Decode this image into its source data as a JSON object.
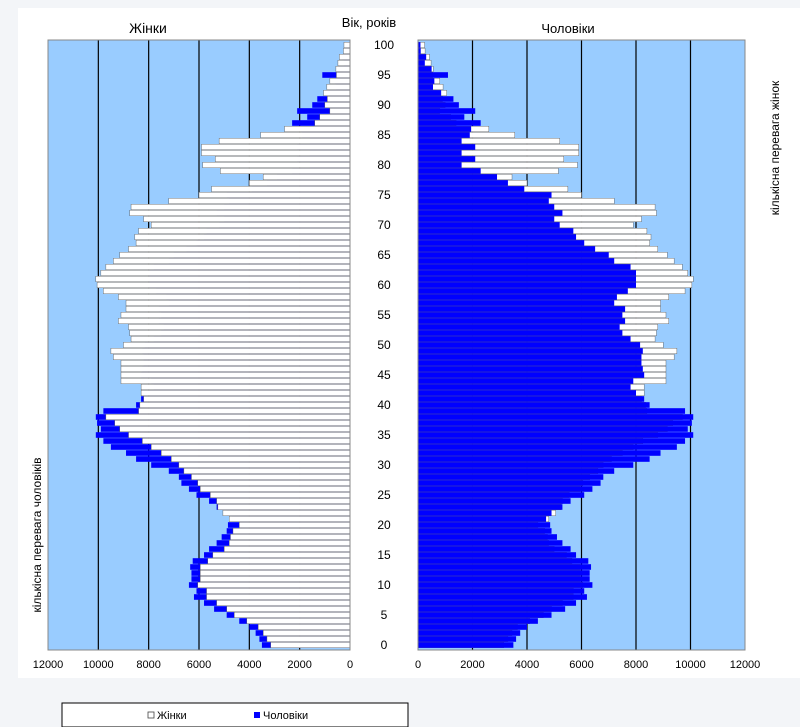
{
  "chart_data": {
    "type": "bar",
    "subtype": "population-pyramid",
    "left_panel_title": "Жінки",
    "right_panel_title": "Чоловіки",
    "center_axis_label": "Вік, років",
    "left_side_label": "кількісна перевага чоловіків",
    "right_side_label": "кількісна перевага жінок",
    "ages": [
      0,
      1,
      2,
      3,
      4,
      5,
      6,
      7,
      8,
      9,
      10,
      11,
      12,
      13,
      14,
      15,
      16,
      17,
      18,
      19,
      20,
      21,
      22,
      23,
      24,
      25,
      26,
      27,
      28,
      29,
      30,
      31,
      32,
      33,
      34,
      35,
      36,
      37,
      38,
      39,
      40,
      41,
      42,
      43,
      44,
      45,
      46,
      47,
      48,
      49,
      50,
      51,
      52,
      53,
      54,
      55,
      56,
      57,
      58,
      59,
      60,
      61,
      62,
      63,
      64,
      65,
      66,
      67,
      68,
      69,
      70,
      71,
      72,
      73,
      74,
      75,
      76,
      77,
      78,
      79,
      80,
      81,
      82,
      83,
      84,
      85,
      86,
      87,
      88,
      89,
      90,
      91,
      92,
      93,
      94,
      95,
      96,
      97,
      98,
      99,
      100
    ],
    "series": [
      {
        "name": "Жінки",
        "color": "#ffffff",
        "values": [
          3150,
          3300,
          3450,
          3650,
          4100,
          4600,
          4900,
          5300,
          5700,
          5700,
          6050,
          5950,
          5950,
          5950,
          5650,
          5450,
          5000,
          4800,
          4750,
          4650,
          4400,
          4800,
          5050,
          5250,
          5300,
          5550,
          5950,
          6050,
          6300,
          6600,
          6800,
          7100,
          7500,
          7900,
          8250,
          8800,
          9150,
          9350,
          9700,
          8400,
          8350,
          8200,
          8300,
          8300,
          9100,
          9100,
          9100,
          9100,
          9400,
          9500,
          9000,
          8700,
          8750,
          8800,
          9200,
          9100,
          8900,
          8900,
          9200,
          9800,
          10050,
          10100,
          9900,
          9700,
          9400,
          9150,
          8800,
          8500,
          8550,
          8400,
          7900,
          8200,
          8750,
          8700,
          7200,
          6000,
          5500,
          4000,
          3450,
          5150,
          5850,
          5350,
          5900,
          5900,
          5200,
          3550,
          2600,
          1400,
          1200,
          800,
          1000,
          900,
          1050,
          920,
          800,
          540,
          560,
          480,
          420,
          260,
          240
        ]
      },
      {
        "name": "Чоловіки",
        "color": "#0000ff",
        "values": [
          3500,
          3600,
          3750,
          4000,
          4400,
          4900,
          5400,
          5800,
          6200,
          6100,
          6400,
          6300,
          6300,
          6350,
          6250,
          5800,
          5600,
          5300,
          5100,
          4900,
          4850,
          4700,
          4900,
          5300,
          5600,
          6100,
          6400,
          6700,
          6800,
          7200,
          7900,
          8500,
          8900,
          9500,
          9800,
          10100,
          9900,
          10050,
          10100,
          9800,
          8500,
          8300,
          8000,
          7800,
          7900,
          8300,
          8250,
          8200,
          8200,
          8250,
          8150,
          7800,
          7500,
          7400,
          7600,
          7500,
          7600,
          7200,
          7300,
          7700,
          8000,
          8000,
          8000,
          7800,
          7200,
          7000,
          6500,
          6100,
          5800,
          5700,
          5200,
          5000,
          5300,
          5000,
          4800,
          4900,
          3900,
          3300,
          2900,
          2300,
          1600,
          2100,
          1600,
          2100,
          1600,
          1900,
          1950,
          2300,
          1700,
          2100,
          1500,
          1300,
          850,
          550,
          600,
          1100,
          500,
          250,
          300,
          100,
          90
        ]
      }
    ],
    "x_ticks_left": [
      "12000",
      "10000",
      "8000",
      "6000",
      "4000",
      "2000",
      "0"
    ],
    "x_ticks_right": [
      "0",
      "2000",
      "4000",
      "6000",
      "8000",
      "10000",
      "12000"
    ],
    "y_ticks": [
      "0",
      "5",
      "10",
      "15",
      "20",
      "25",
      "30",
      "35",
      "40",
      "45",
      "50",
      "55",
      "60",
      "65",
      "70",
      "75",
      "80",
      "85",
      "90",
      "95",
      "100"
    ],
    "xlim": [
      0,
      12000
    ],
    "ylim": [
      0,
      100
    ],
    "panel_background": "#99ccff",
    "gridline_color": "#000000",
    "legend": {
      "position": "bottom-left",
      "items": [
        "Жінки",
        "Чоловіки"
      ]
    }
  }
}
